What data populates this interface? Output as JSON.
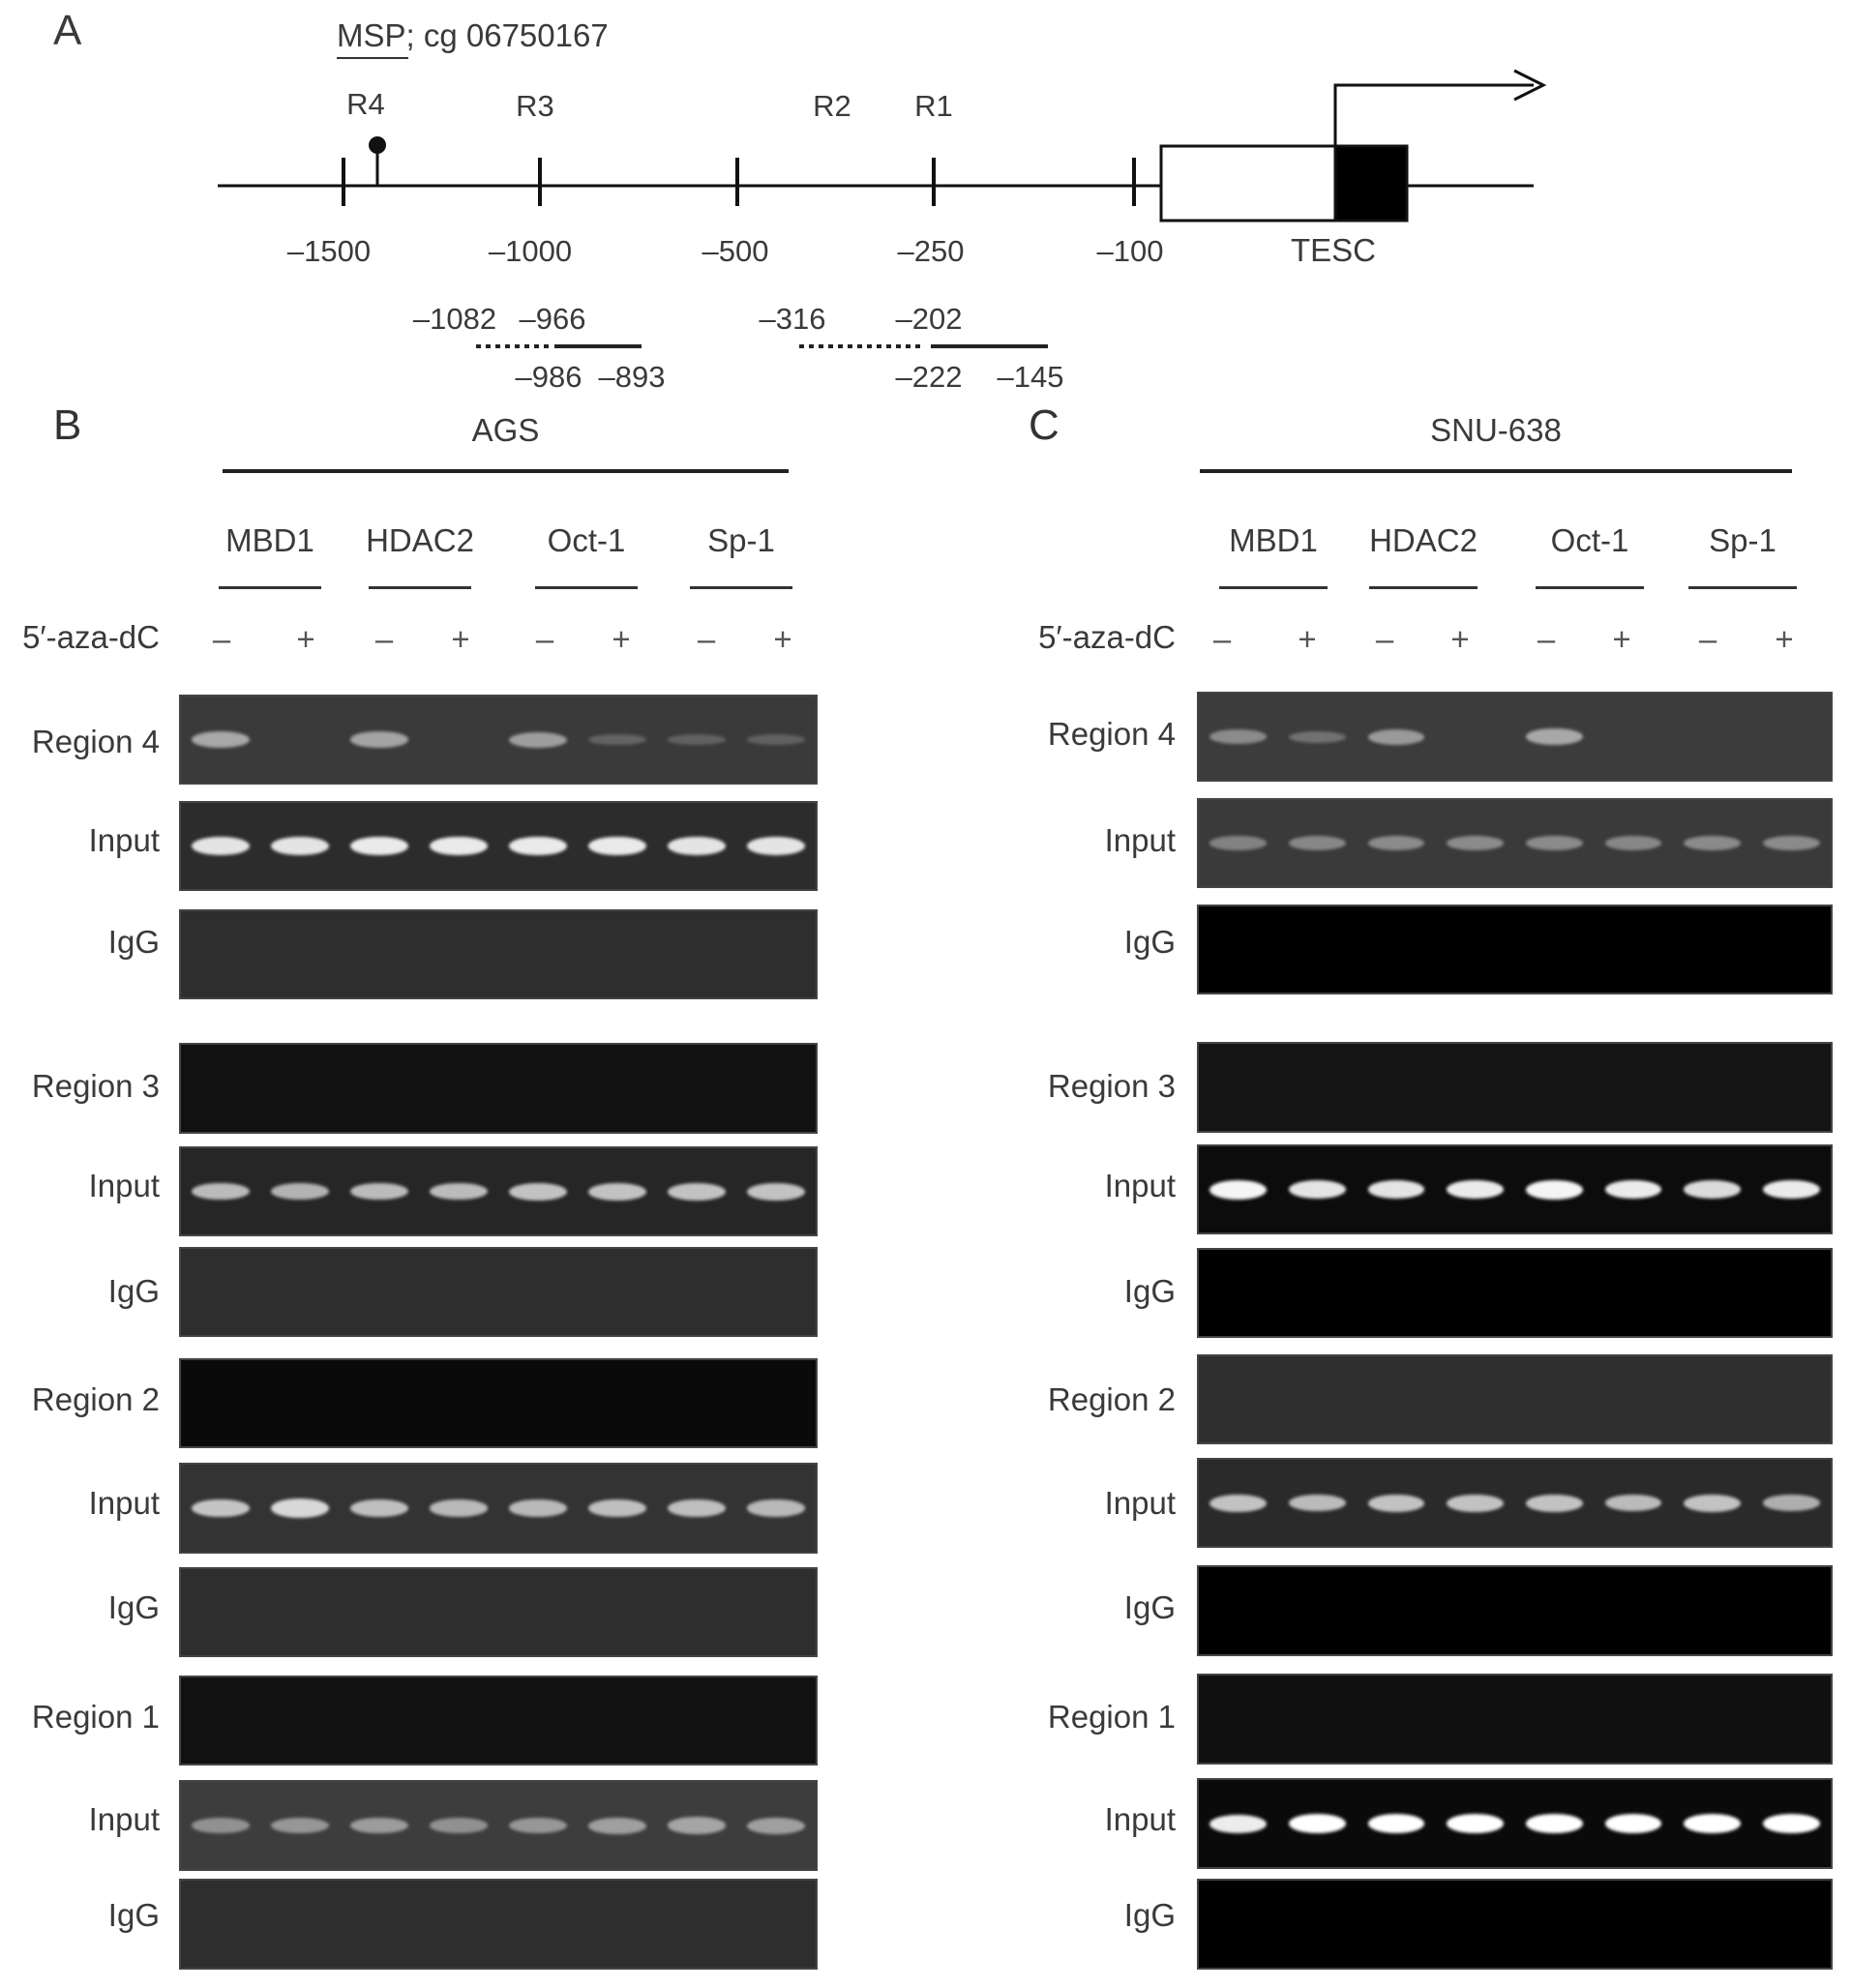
{
  "panel_a": {
    "letter": "A",
    "msp_label": "MSP; cg 06750167",
    "region_labels": [
      "R4",
      "R3",
      "R2",
      "R1"
    ],
    "ticks": [
      "–1500",
      "–1000",
      "–500",
      "–250",
      "–100"
    ],
    "gene_label": "TESC",
    "primer_labels": [
      "–1082",
      "–966",
      "–986",
      "–893",
      "–316",
      "–202",
      "–222",
      "–145"
    ]
  },
  "panels": [
    {
      "letter": "B",
      "cell_line": "AGS",
      "antibodies": [
        "MBD1",
        "HDAC2",
        "Oct-1",
        "Sp-1"
      ],
      "treatment_label": "5′-aza-dC",
      "treatment_signs": [
        "–",
        "+",
        "–",
        "+",
        "–",
        "+",
        "–",
        "+"
      ],
      "rows": [
        {
          "label": "Region 4",
          "bg": "#3a3a3a",
          "band_color": "#c9c9c9",
          "bands": [
            0.7,
            0,
            0.65,
            0,
            0.6,
            0.05,
            0.03,
            0.03
          ]
        },
        {
          "label": "Input",
          "bg": "#2c2c2c",
          "band_color": "#f2f2f2",
          "bands": [
            0.9,
            0.9,
            0.95,
            0.95,
            0.95,
            0.95,
            0.9,
            0.9
          ]
        },
        {
          "label": "IgG",
          "bg": "#2e2e2e",
          "band_color": "#cccccc",
          "bands": [
            0,
            0,
            0,
            0,
            0,
            0,
            0,
            0
          ]
        },
        {
          "label": "Region 3",
          "bg": "#111111",
          "band_color": "#cccccc",
          "bands": [
            0,
            0,
            0,
            0,
            0,
            0,
            0,
            0
          ]
        },
        {
          "label": "Input",
          "bg": "#262626",
          "band_color": "#dedede",
          "bands": [
            0.75,
            0.7,
            0.75,
            0.75,
            0.8,
            0.8,
            0.8,
            0.8
          ]
        },
        {
          "label": "IgG",
          "bg": "#2e2e2e",
          "band_color": "#cccccc",
          "bands": [
            0,
            0,
            0,
            0,
            0,
            0,
            0,
            0
          ]
        },
        {
          "label": "Region 2",
          "bg": "#0a0a0a",
          "band_color": "#cccccc",
          "bands": [
            0,
            0,
            0,
            0,
            0,
            0,
            0,
            0
          ]
        },
        {
          "label": "Input",
          "bg": "#333333",
          "band_color": "#d8d8d8",
          "bands": [
            0.85,
            1,
            0.8,
            0.75,
            0.75,
            0.8,
            0.8,
            0.75
          ]
        },
        {
          "label": "IgG",
          "bg": "#2e2e2e",
          "band_color": "#cccccc",
          "bands": [
            0,
            0,
            0,
            0,
            0,
            0,
            0,
            0
          ]
        },
        {
          "label": "Region 1",
          "bg": "#111111",
          "band_color": "#cccccc",
          "bands": [
            0,
            0,
            0,
            0,
            0,
            0,
            0,
            0
          ]
        },
        {
          "label": "Input",
          "bg": "#3d3d3d",
          "band_color": "#bdbdbd",
          "bands": [
            0.55,
            0.6,
            0.65,
            0.55,
            0.6,
            0.7,
            0.75,
            0.7
          ]
        },
        {
          "label": "IgG",
          "bg": "#2e2e2e",
          "band_color": "#cccccc",
          "bands": [
            0,
            0,
            0,
            0,
            0,
            0,
            0,
            0
          ]
        }
      ]
    },
    {
      "letter": "C",
      "cell_line": "SNU-638",
      "antibodies": [
        "MBD1",
        "HDAC2",
        "Oct-1",
        "Sp-1"
      ],
      "treatment_label": "5′-aza-dC",
      "treatment_signs": [
        "–",
        "+",
        "–",
        "+",
        "–",
        "+",
        "–",
        "+"
      ],
      "rows": [
        {
          "label": "Region 4",
          "bg": "#3c3c3c",
          "band_color": "#c2c2c2",
          "bands": [
            0.45,
            0.2,
            0.6,
            0,
            0.75,
            0,
            0,
            0
          ]
        },
        {
          "label": "Input",
          "bg": "#3a3a3a",
          "band_color": "#b5b5b5",
          "bands": [
            0.45,
            0.5,
            0.55,
            0.55,
            0.55,
            0.5,
            0.55,
            0.55
          ]
        },
        {
          "label": "IgG",
          "bg": "#000000",
          "band_color": "#cccccc",
          "bands": [
            0,
            0,
            0,
            0,
            0,
            0,
            0,
            0
          ]
        },
        {
          "label": "Region 3",
          "bg": "#141414",
          "band_color": "#cccccc",
          "bands": [
            0,
            0,
            0,
            0,
            0,
            0,
            0,
            0
          ]
        },
        {
          "label": "Input",
          "bg": "#0c0c0c",
          "band_color": "#f5f5f5",
          "bands": [
            1,
            0.9,
            0.9,
            0.95,
            1,
            0.95,
            0.85,
            0.95
          ]
        },
        {
          "label": "IgG",
          "bg": "#000000",
          "band_color": "#cccccc",
          "bands": [
            0,
            0,
            0,
            0,
            0,
            0,
            0,
            0
          ]
        },
        {
          "label": "Region 2",
          "bg": "#2f2f2f",
          "band_color": "#cccccc",
          "bands": [
            0,
            0,
            0,
            0,
            0,
            0,
            0,
            0
          ]
        },
        {
          "label": "Input",
          "bg": "#2a2a2a",
          "band_color": "#dddddd",
          "bands": [
            0.8,
            0.75,
            0.8,
            0.8,
            0.8,
            0.75,
            0.8,
            0.65
          ]
        },
        {
          "label": "IgG",
          "bg": "#000000",
          "band_color": "#cccccc",
          "bands": [
            0,
            0,
            0,
            0,
            0,
            0,
            0,
            0
          ]
        },
        {
          "label": "Region 1",
          "bg": "#101010",
          "band_color": "#cccccc",
          "bands": [
            0,
            0,
            0,
            0,
            0,
            0,
            0,
            0
          ]
        },
        {
          "label": "Input",
          "bg": "#0a0a0a",
          "band_color": "#ffffff",
          "bands": [
            0.9,
            1,
            1,
            1,
            1,
            1,
            1,
            1
          ]
        },
        {
          "label": "IgG",
          "bg": "#000000",
          "band_color": "#cccccc",
          "bands": [
            0,
            0,
            0,
            0,
            0,
            0,
            0,
            0
          ]
        }
      ]
    }
  ]
}
